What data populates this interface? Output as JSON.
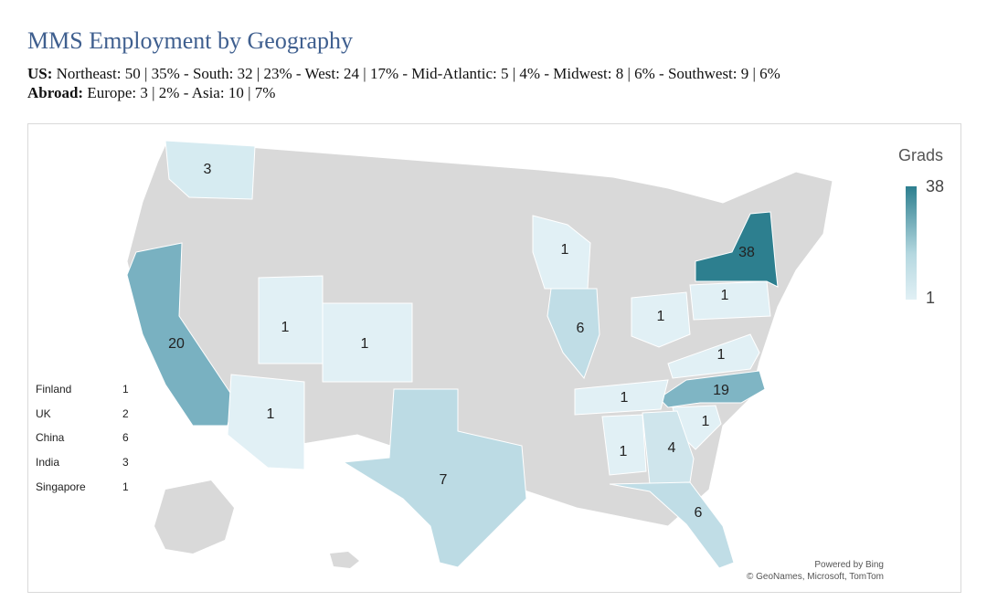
{
  "title": "MMS Employment by Geography",
  "summary": {
    "us_label": "US:",
    "us_text": "Northeast: 50 | 35% - South: 32 | 23% - West: 24 | 17% - Mid-Atlantic: 5 | 4% - Midwest: 8 | 6% - Southwest: 9 | 6%",
    "abroad_label": "Abroad:",
    "abroad_text": "Europe: 3 | 2% - Asia: 10 | 7%"
  },
  "legend": {
    "title": "Grads",
    "max": "38",
    "min": "1"
  },
  "colors": {
    "base_state": "#d9d9d9",
    "low": "#e1f0f5",
    "high": "#2d7f8f",
    "border": "#ffffff",
    "title": "#3f5f8f"
  },
  "states": [
    {
      "name": "Washington",
      "grads": "3"
    },
    {
      "name": "California",
      "grads": "20"
    },
    {
      "name": "Utah",
      "grads": "1"
    },
    {
      "name": "Colorado",
      "grads": "1"
    },
    {
      "name": "Arizona",
      "grads": "1"
    },
    {
      "name": "Texas",
      "grads": "7"
    },
    {
      "name": "Wisconsin",
      "grads": "1"
    },
    {
      "name": "Illinois",
      "grads": "6"
    },
    {
      "name": "Ohio",
      "grads": "1"
    },
    {
      "name": "Pennsylvania",
      "grads": "1"
    },
    {
      "name": "New York",
      "grads": "38"
    },
    {
      "name": "Virginia",
      "grads": "1"
    },
    {
      "name": "North Carolina",
      "grads": "19"
    },
    {
      "name": "Tennessee",
      "grads": "1"
    },
    {
      "name": "South Carolina",
      "grads": "1"
    },
    {
      "name": "Alabama",
      "grads": "1"
    },
    {
      "name": "Georgia",
      "grads": "4"
    },
    {
      "name": "Florida",
      "grads": "6"
    }
  ],
  "abroad": [
    {
      "country": "Finland",
      "count": "1"
    },
    {
      "country": "UK",
      "count": "2"
    },
    {
      "country": "China",
      "count": "6"
    },
    {
      "country": "India",
      "count": "3"
    },
    {
      "country": "Singapore",
      "count": "1"
    }
  ],
  "credit": {
    "line1": "Powered by Bing",
    "line2": "© GeoNames, Microsoft, TomTom"
  }
}
